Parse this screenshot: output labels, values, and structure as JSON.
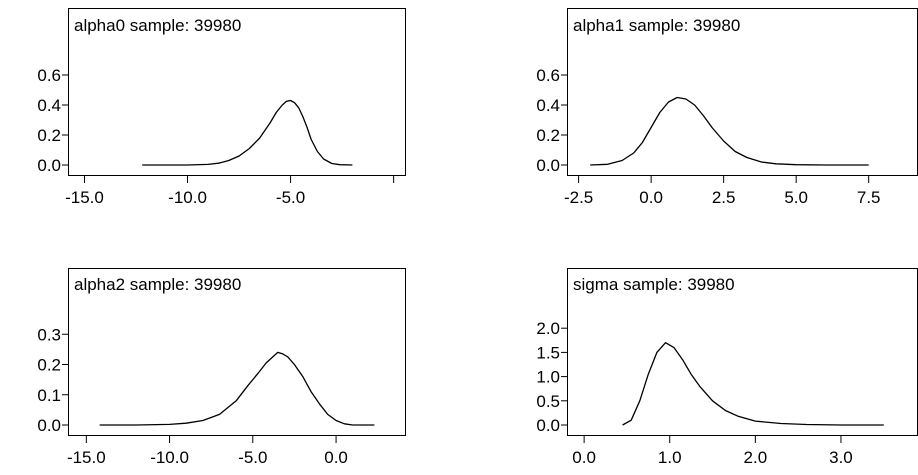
{
  "chart_data": [
    {
      "type": "line",
      "title": "alpha0 sample: 39980",
      "xlabel": "",
      "ylabel": "",
      "xlim": [
        -15.8,
        0.6
      ],
      "ylim": [
        0.0,
        0.8
      ],
      "xticks": [
        -15.0,
        -10.0,
        -5.0,
        0.0
      ],
      "xtick_labels": [
        "-15.0",
        "-10.0",
        "-5.0",
        ""
      ],
      "yticks": [
        0.0,
        0.2,
        0.4,
        0.6
      ],
      "ytick_labels": [
        "0.0",
        "0.2",
        "0.4",
        "0.6"
      ],
      "grid": false,
      "series": [
        {
          "x": [
            -12.2,
            -11,
            -10,
            -9,
            -8.5,
            -8,
            -7.5,
            -7,
            -6.5,
            -6,
            -5.7,
            -5.4,
            -5.2,
            -5.0,
            -4.8,
            -4.6,
            -4.4,
            -4.2,
            -4.0,
            -3.7,
            -3.4,
            -3.0,
            -2.6,
            -2.0
          ],
          "y": [
            0.0,
            0.0,
            0.0,
            0.004,
            0.012,
            0.03,
            0.06,
            0.11,
            0.18,
            0.28,
            0.35,
            0.4,
            0.425,
            0.43,
            0.415,
            0.38,
            0.32,
            0.25,
            0.17,
            0.09,
            0.04,
            0.01,
            0.002,
            0.0
          ]
        }
      ]
    },
    {
      "type": "line",
      "title": "alpha1 sample: 39980",
      "xlabel": "",
      "ylabel": "",
      "xlim": [
        -2.9,
        9.2
      ],
      "ylim": [
        0.0,
        0.8
      ],
      "xticks": [
        -2.5,
        0.0,
        2.5,
        5.0,
        7.5
      ],
      "xtick_labels": [
        "-2.5",
        "0.0",
        "2.5",
        "5.0",
        "7.5"
      ],
      "yticks": [
        0.0,
        0.2,
        0.4,
        0.6
      ],
      "ytick_labels": [
        "0.0",
        "0.2",
        "0.4",
        "0.6"
      ],
      "grid": false,
      "series": [
        {
          "x": [
            -2.1,
            -1.5,
            -1.0,
            -0.6,
            -0.3,
            0.0,
            0.3,
            0.6,
            0.9,
            1.2,
            1.5,
            1.8,
            2.1,
            2.5,
            2.9,
            3.3,
            3.8,
            4.3,
            5.0,
            6.0,
            7.5
          ],
          "y": [
            0.0,
            0.005,
            0.03,
            0.08,
            0.15,
            0.25,
            0.35,
            0.42,
            0.45,
            0.44,
            0.4,
            0.33,
            0.25,
            0.16,
            0.09,
            0.05,
            0.02,
            0.008,
            0.002,
            0.0,
            0.0
          ]
        }
      ]
    },
    {
      "type": "line",
      "title": "alpha2 sample: 39980",
      "xlabel": "",
      "ylabel": "",
      "xlim": [
        -16.1,
        4.2
      ],
      "ylim": [
        0.0,
        0.4
      ],
      "xticks": [
        -15.0,
        -10.0,
        -5.0,
        0.0
      ],
      "xtick_labels": [
        "-15.0",
        "-10.0",
        "-5.0",
        "0.0"
      ],
      "yticks": [
        0.0,
        0.1,
        0.2,
        0.3
      ],
      "ytick_labels": [
        "0.0",
        "0.1",
        "0.2",
        "0.3"
      ],
      "grid": false,
      "series": [
        {
          "x": [
            -14.2,
            -12,
            -10,
            -9,
            -8,
            -7,
            -6,
            -5.3,
            -4.7,
            -4.2,
            -3.8,
            -3.5,
            -3.2,
            -2.9,
            -2.5,
            -2.0,
            -1.5,
            -1.0,
            -0.5,
            0.0,
            0.5,
            1.0,
            2.3
          ],
          "y": [
            0.0,
            0.0,
            0.002,
            0.006,
            0.015,
            0.035,
            0.08,
            0.13,
            0.17,
            0.205,
            0.225,
            0.24,
            0.235,
            0.225,
            0.2,
            0.16,
            0.11,
            0.07,
            0.035,
            0.015,
            0.004,
            0.0,
            0.0
          ]
        }
      ]
    },
    {
      "type": "line",
      "title": "sigma sample: 39980",
      "xlabel": "",
      "ylabel": "",
      "xlim": [
        -0.2,
        3.9
      ],
      "ylim": [
        0.0,
        2.5
      ],
      "xticks": [
        0.0,
        1.0,
        2.0,
        3.0
      ],
      "xtick_labels": [
        "0.0",
        "1.0",
        "2.0",
        "3.0"
      ],
      "yticks": [
        0.0,
        0.5,
        1.0,
        1.5,
        2.0
      ],
      "ytick_labels": [
        "0.0",
        "0.5",
        "1.0",
        "1.5",
        "2.0"
      ],
      "grid": false,
      "series": [
        {
          "x": [
            0.45,
            0.55,
            0.65,
            0.75,
            0.85,
            0.95,
            1.05,
            1.15,
            1.25,
            1.35,
            1.5,
            1.65,
            1.8,
            2.0,
            2.3,
            2.6,
            3.0,
            3.5
          ],
          "y": [
            0.0,
            0.1,
            0.5,
            1.05,
            1.5,
            1.7,
            1.6,
            1.35,
            1.05,
            0.8,
            0.5,
            0.3,
            0.18,
            0.08,
            0.03,
            0.01,
            0.0,
            0.0
          ]
        }
      ]
    }
  ]
}
